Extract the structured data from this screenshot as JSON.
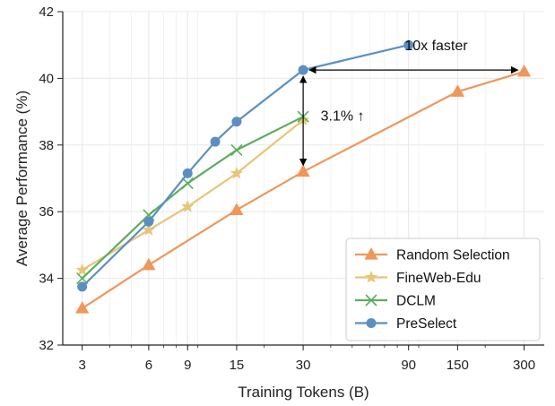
{
  "chart_data": {
    "type": "line",
    "xlabel": "Training Tokens (B)",
    "ylabel": "Average Performance (%)",
    "x_scale": "log",
    "xlim": [
      2.45,
      370
    ],
    "ylim": [
      32,
      42
    ],
    "x_ticks": [
      3,
      6,
      9,
      15,
      30,
      90,
      150,
      300
    ],
    "y_ticks": [
      32,
      34,
      36,
      38,
      40,
      42
    ],
    "grid": true,
    "legend_position": "lower-right",
    "series": [
      {
        "name": "Random Selection",
        "color": "#F0965A",
        "marker": "triangle",
        "points": [
          [
            3,
            33.1
          ],
          [
            6,
            34.4
          ],
          [
            15,
            36.05
          ],
          [
            30,
            37.2
          ],
          [
            150,
            39.6
          ],
          [
            300,
            40.2
          ]
        ]
      },
      {
        "name": "FineWeb-Edu",
        "color": "#E8C57A",
        "marker": "star",
        "points": [
          [
            3,
            34.25
          ],
          [
            6,
            35.45
          ],
          [
            9,
            36.15
          ],
          [
            15,
            37.15
          ],
          [
            30,
            38.75
          ]
        ]
      },
      {
        "name": "DCLM",
        "color": "#5BAE5E",
        "marker": "x",
        "points": [
          [
            3,
            34.0
          ],
          [
            6,
            35.9
          ],
          [
            9,
            36.85
          ],
          [
            15,
            37.85
          ],
          [
            30,
            38.85
          ]
        ]
      },
      {
        "name": "PreSelect",
        "color": "#5B8FC2",
        "marker": "circle",
        "points": [
          [
            3,
            33.75
          ],
          [
            6,
            35.7
          ],
          [
            9,
            37.15
          ],
          [
            12,
            38.1
          ],
          [
            15,
            38.7
          ],
          [
            30,
            40.25
          ],
          [
            90,
            41.0
          ]
        ]
      }
    ],
    "annotations": [
      {
        "text": "10x faster",
        "type": "horizontal-double-arrow",
        "x_from": 30,
        "x_to": 300,
        "y": 40.25,
        "label_x": 120,
        "label_y": 41.0
      },
      {
        "text": "3.1% ↑",
        "type": "vertical-double-arrow",
        "x": 30,
        "y_from": 37.2,
        "y_to": 40.25,
        "label_x": 36,
        "label_y": 38.9
      }
    ]
  }
}
